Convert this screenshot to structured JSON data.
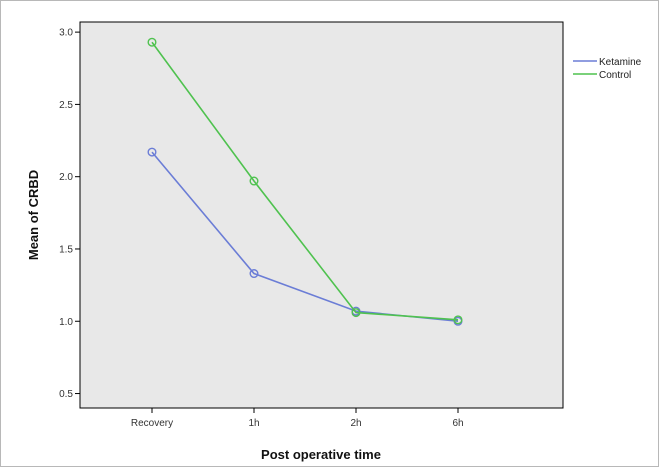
{
  "chart_data": {
    "type": "line",
    "title": "",
    "xlabel": "Post operative time",
    "ylabel": "Mean of CRBD",
    "categories": [
      "Recovery",
      "1h",
      "2h",
      "6h"
    ],
    "yticks": [
      "0.5",
      "1.0",
      "1.5",
      "2.0",
      "2.5",
      "3.0"
    ],
    "ylim": [
      0.4,
      3.07
    ],
    "grid": false,
    "legend_position": "top-right, outside plot",
    "background": "#e8e8e8",
    "series": [
      {
        "name": "Ketamine",
        "color": "#6b7dd6",
        "values": [
          2.17,
          1.33,
          1.07,
          1.0
        ]
      },
      {
        "name": "Control",
        "color": "#4fc24f",
        "values": [
          2.93,
          1.97,
          1.06,
          1.01
        ]
      }
    ]
  }
}
